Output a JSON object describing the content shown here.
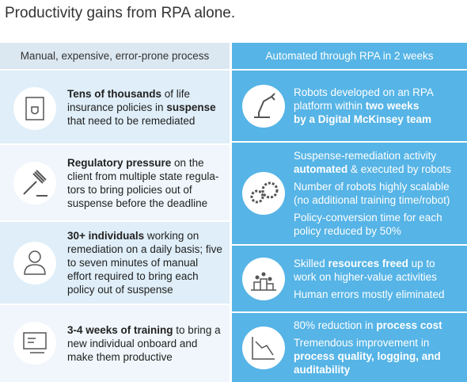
{
  "title": "Productivity gains from RPA alone.",
  "left": {
    "header": "Manual, expensive, error-prone process",
    "items": [
      {
        "paragraphs": [
          [
            [
              {
                "text": "Tens of thousands",
                "bold": true
              },
              {
                "text": " of life"
              }
            ],
            [
              {
                "text": "insurance policies in "
              },
              {
                "text": "suspense",
                "bold": true
              }
            ],
            [
              {
                "text": "that need to be remediated"
              }
            ]
          ]
        ]
      },
      {
        "paragraphs": [
          [
            [
              {
                "text": "Regulatory pressure",
                "bold": true
              },
              {
                "text": " on the"
              }
            ],
            [
              {
                "text": "client from multiple state regula-"
              }
            ],
            [
              {
                "text": "tors to bring policies out of"
              }
            ],
            [
              {
                "text": "suspense before the deadline"
              }
            ]
          ]
        ]
      },
      {
        "paragraphs": [
          [
            [
              {
                "text": "30+ individuals",
                "bold": true
              },
              {
                "text": " working on"
              }
            ],
            [
              {
                "text": "remediation on a daily basis; five"
              }
            ],
            [
              {
                "text": "to seven minutes of manual"
              }
            ],
            [
              {
                "text": "effort required to bring each"
              }
            ],
            [
              {
                "text": "policy out of suspense"
              }
            ]
          ]
        ]
      },
      {
        "paragraphs": [
          [
            [
              {
                "text": "3-4 weeks of training",
                "bold": true
              },
              {
                "text": " to bring a"
              }
            ],
            [
              {
                "text": "new individual onboard and"
              }
            ],
            [
              {
                "text": "make them productive"
              }
            ]
          ]
        ]
      }
    ]
  },
  "right": {
    "header": "Automated through RPA in 2 weeks",
    "items": [
      {
        "paragraphs": [
          [
            [
              {
                "text": "Robots developed on an RPA"
              }
            ],
            [
              {
                "text": "platform within "
              },
              {
                "text": "two weeks",
                "bold": true
              }
            ],
            [
              {
                "text": "by a Digital McKinsey team",
                "bold": true
              }
            ]
          ]
        ]
      },
      {
        "paragraphs": [
          [
            [
              {
                "text": "Suspense-remediation activity"
              }
            ],
            [
              {
                "text": "automated",
                "bold": true
              },
              {
                "text": " & executed by robots"
              }
            ]
          ],
          [
            [
              {
                "text": "Number of robots highly scalable"
              }
            ],
            [
              {
                "text": "(no additional training time/robot)"
              }
            ]
          ],
          [
            [
              {
                "text": "Policy-conversion time for each"
              }
            ],
            [
              {
                "text": "policy reduced by 50%"
              }
            ]
          ]
        ]
      },
      {
        "paragraphs": [
          [
            [
              {
                "text": "Skilled "
              },
              {
                "text": "resources freed",
                "bold": true
              },
              {
                "text": " up to"
              }
            ],
            [
              {
                "text": "work on higher-value activities"
              }
            ]
          ],
          [
            [
              {
                "text": "Human errors mostly eliminated"
              }
            ]
          ]
        ]
      },
      {
        "paragraphs": [
          [
            [
              {
                "text": "80% reduction in "
              },
              {
                "text": "process cost",
                "bold": true
              }
            ]
          ],
          [
            [
              {
                "text": "Tremendous improvement in"
              }
            ],
            [
              {
                "text": "process quality, logging, and",
                "bold": true
              }
            ],
            [
              {
                "text": "auditability",
                "bold": true
              }
            ]
          ]
        ]
      }
    ]
  }
}
